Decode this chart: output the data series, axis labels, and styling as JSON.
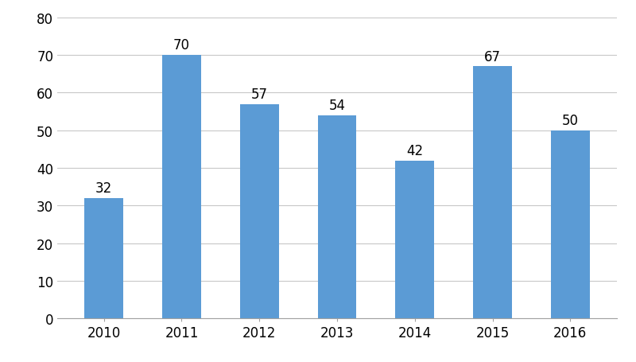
{
  "categories": [
    "2010",
    "2011",
    "2012",
    "2013",
    "2014",
    "2015",
    "2016"
  ],
  "values": [
    32,
    70,
    57,
    54,
    42,
    67,
    50
  ],
  "bar_color": "#5B9BD5",
  "ylim": [
    0,
    80
  ],
  "yticks": [
    0,
    10,
    20,
    30,
    40,
    50,
    60,
    70,
    80
  ],
  "background_color": "#ffffff",
  "grid_color": "#c8c8c8",
  "label_fontsize": 12,
  "tick_fontsize": 12,
  "bar_width": 0.5
}
